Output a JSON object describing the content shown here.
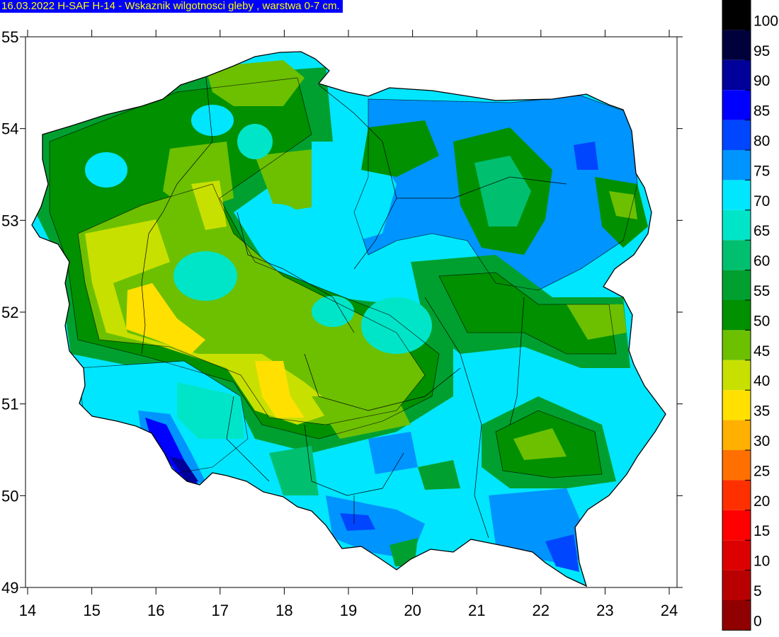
{
  "title": "16.03.2022 H-SAF H-14 - Wskaznik wilgotnosci gleby , warstwa 0-7 cm.",
  "map": {
    "x_ticks": [
      "14",
      "15",
      "16",
      "17",
      "18",
      "19",
      "20",
      "21",
      "22",
      "23",
      "24"
    ],
    "y_ticks": [
      "55",
      "54",
      "53",
      "52",
      "51",
      "50",
      "49"
    ],
    "x_range": [
      14,
      24
    ],
    "y_range": [
      49,
      55
    ]
  },
  "legend": {
    "labels": [
      "100",
      "95",
      "90",
      "85",
      "80",
      "75",
      "70",
      "65",
      "60",
      "55",
      "50",
      "45",
      "40",
      "35",
      "30",
      "25",
      "20",
      "15",
      "10",
      "5",
      "0"
    ],
    "colors": [
      "#000000",
      "#00003c",
      "#00009a",
      "#0000ff",
      "#0046ff",
      "#0094ff",
      "#00e6ff",
      "#00e5c8",
      "#00c070",
      "#00a030",
      "#009000",
      "#6cc000",
      "#c8e000",
      "#ffe000",
      "#ffb000",
      "#ff7000",
      "#ff3000",
      "#ff0000",
      "#dd0000",
      "#b80000",
      "#900000"
    ]
  },
  "colors": {
    "title_bg": "#0000ff",
    "title_fg": "#ffff00"
  }
}
